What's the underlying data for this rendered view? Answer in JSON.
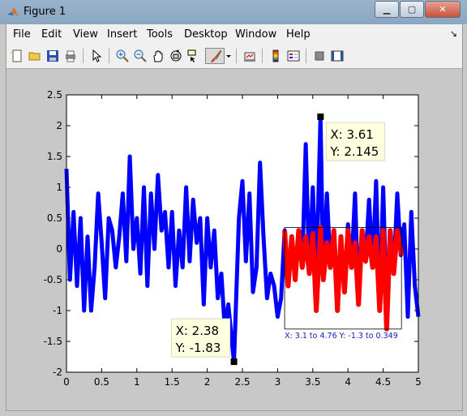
{
  "window": {
    "title": "Figure 1"
  },
  "menu": {
    "file": "File",
    "edit": "Edit",
    "view": "View",
    "insert": "Insert",
    "tools": "Tools",
    "desktop": "Desktop",
    "window": "Window",
    "help": "Help"
  },
  "toolbar": {
    "icons": [
      "new-figure-icon",
      "open-icon",
      "save-icon",
      "print-icon",
      "pointer-icon",
      "zoom-in-icon",
      "zoom-out-icon",
      "pan-icon",
      "rotate-icon",
      "data-cursor-icon",
      "brush-icon",
      "brush-dropdown-icon",
      "link-icon",
      "colorbar-icon",
      "legend-icon",
      "hide-plot-tools-icon",
      "show-plot-tools-icon"
    ],
    "active_tool": "brush-icon"
  },
  "chart_data": {
    "type": "line",
    "xlim": [
      0,
      5
    ],
    "ylim": [
      -2,
      2.5
    ],
    "xticks": [
      "0",
      "0.5",
      "1",
      "1.5",
      "2",
      "2.5",
      "3",
      "3.5",
      "4",
      "4.5",
      "5"
    ],
    "yticks": [
      "-2",
      "-1.5",
      "-1",
      "-0.5",
      "0",
      "0.5",
      "1",
      "1.5",
      "2",
      "2.5"
    ],
    "series": [
      {
        "color": "#0000ff",
        "x": [
          0,
          0.05,
          0.1,
          0.15,
          0.2,
          0.25,
          0.3,
          0.35,
          0.4,
          0.45,
          0.5,
          0.55,
          0.6,
          0.65,
          0.7,
          0.75,
          0.8,
          0.85,
          0.9,
          0.95,
          1.0,
          1.05,
          1.1,
          1.15,
          1.2,
          1.25,
          1.3,
          1.35,
          1.4,
          1.45,
          1.5,
          1.55,
          1.6,
          1.65,
          1.7,
          1.75,
          1.8,
          1.85,
          1.9,
          1.95,
          2.0,
          2.05,
          2.1,
          2.15,
          2.2,
          2.25,
          2.3,
          2.35,
          2.38,
          2.45,
          2.5,
          2.55,
          2.6,
          2.65,
          2.7,
          2.75,
          2.8,
          2.85,
          2.9,
          2.95,
          3.0,
          3.05,
          3.1,
          3.15,
          3.2,
          3.25,
          3.3,
          3.35,
          3.4,
          3.45,
          3.5,
          3.55,
          3.61,
          3.65,
          3.7,
          3.75,
          3.8,
          3.85,
          3.9,
          3.95,
          4.0,
          4.05,
          4.1,
          4.15,
          4.2,
          4.25,
          4.3,
          4.35,
          4.4,
          4.45,
          4.5,
          4.55,
          4.6,
          4.65,
          4.7,
          4.75,
          4.8,
          4.85,
          4.9,
          4.95,
          5.0
        ],
        "y": [
          1.3,
          -0.5,
          0.6,
          -0.6,
          0.5,
          -1.0,
          0.2,
          -1.0,
          -0.3,
          0.9,
          0.1,
          -0.8,
          0.5,
          0.3,
          -0.3,
          0.2,
          0.9,
          -0.2,
          1.5,
          0.0,
          0.5,
          -0.4,
          1.0,
          -0.6,
          0.9,
          0.0,
          1.2,
          0.3,
          0.6,
          -0.3,
          0.6,
          -0.6,
          0.3,
          -0.3,
          1.0,
          -0.2,
          0.8,
          0.1,
          0.5,
          -0.9,
          0.5,
          -0.3,
          0.3,
          -0.8,
          -0.4,
          -1.3,
          -0.9,
          -1.5,
          -1.83,
          0.5,
          1.1,
          -0.2,
          0.9,
          -0.7,
          -0.3,
          1.4,
          0.2,
          -0.8,
          -0.4,
          -0.6,
          -1.1,
          -0.8,
          0.3,
          -0.6,
          0.2,
          -0.5,
          0.3,
          -0.3,
          1.7,
          -0.4,
          1.0,
          -0.5,
          2.145,
          -0.5,
          0.9,
          -0.3,
          0.3,
          -1.0,
          0.2,
          -0.7,
          0.4,
          -0.3,
          0.9,
          -0.9,
          0.3,
          -0.2,
          0.8,
          -0.3,
          1.1,
          -1.0,
          1.0,
          -1.0,
          0.3,
          -0.4,
          0.9,
          -0.1,
          0.4,
          -1.1,
          0.6,
          -0.6,
          -1.1
        ]
      },
      {
        "color": "#ff0000",
        "x": [
          3.1,
          3.15,
          3.2,
          3.25,
          3.3,
          3.35,
          3.4,
          3.45,
          3.5,
          3.55,
          3.61,
          3.65,
          3.7,
          3.75,
          3.8,
          3.85,
          3.9,
          3.95,
          4.0,
          4.05,
          4.1,
          4.15,
          4.2,
          4.25,
          4.3,
          4.35,
          4.4,
          4.45,
          4.5,
          4.55,
          4.6,
          4.65,
          4.7,
          4.76
        ],
        "y": [
          0.3,
          -0.6,
          0.2,
          -0.5,
          0.3,
          -0.3,
          0.2,
          -0.4,
          0.25,
          -1.0,
          0.349,
          -0.5,
          0.1,
          -0.3,
          0.3,
          -1.0,
          0.2,
          -0.7,
          0.3,
          -0.3,
          0.1,
          -0.9,
          0.3,
          -0.2,
          0.2,
          -0.3,
          0.2,
          -1.0,
          0.3,
          -1.3,
          0.3,
          -0.4,
          0.3,
          -0.1
        ]
      }
    ],
    "datatips": [
      {
        "x_text": "X: 3.61",
        "y_text": "Y: 2.145",
        "x": 3.61,
        "y": 2.145
      },
      {
        "x_text": "X: 2.38",
        "y_text": "Y: -1.83",
        "x": 2.38,
        "y": -1.83
      }
    ],
    "brush_box": {
      "x0": 3.1,
      "x1": 4.76,
      "y0": -1.3,
      "y1": 0.349,
      "label": "X: 3.1 to 4.76  Y: -1.3 to 0.349"
    }
  }
}
